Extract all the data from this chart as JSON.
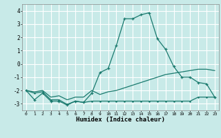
{
  "xlabel": "Humidex (Indice chaleur)",
  "background_color": "#c8eae8",
  "grid_color": "#ffffff",
  "line_color": "#1a7a6e",
  "xlim": [
    -0.5,
    23.5
  ],
  "ylim": [
    -3.5,
    4.5
  ],
  "yticks": [
    -3,
    -2,
    -1,
    0,
    1,
    2,
    3,
    4
  ],
  "xticks": [
    0,
    1,
    2,
    3,
    4,
    5,
    6,
    7,
    8,
    9,
    10,
    11,
    12,
    13,
    14,
    15,
    16,
    17,
    18,
    19,
    20,
    21,
    22,
    23
  ],
  "line1_x": [
    0,
    1,
    2,
    3,
    4,
    5,
    6,
    7,
    8,
    9,
    10,
    11,
    12,
    13,
    14,
    15,
    16,
    17,
    18,
    19,
    20,
    21,
    22,
    23
  ],
  "line1_y": [
    -2.0,
    -2.7,
    -2.2,
    -2.8,
    -2.8,
    -3.1,
    -2.8,
    -2.9,
    -2.2,
    -0.65,
    -0.35,
    1.4,
    3.4,
    3.4,
    3.7,
    3.85,
    1.9,
    1.1,
    -0.2,
    -1.0,
    -1.0,
    -1.4,
    -1.5,
    -2.5
  ],
  "line2_x": [
    0,
    1,
    2,
    3,
    4,
    5,
    6,
    7,
    8,
    9,
    10,
    11,
    12,
    13,
    14,
    15,
    16,
    17,
    18,
    19,
    20,
    21,
    22,
    23
  ],
  "line2_y": [
    -2.0,
    -2.2,
    -2.1,
    -2.7,
    -2.7,
    -3.05,
    -2.8,
    -2.9,
    -2.8,
    -2.8,
    -2.8,
    -2.8,
    -2.8,
    -2.8,
    -2.8,
    -2.8,
    -2.8,
    -2.8,
    -2.8,
    -2.8,
    -2.8,
    -2.5,
    -2.5,
    -2.5
  ],
  "line3_x": [
    0,
    1,
    2,
    3,
    4,
    5,
    6,
    7,
    8,
    9,
    10,
    11,
    12,
    13,
    14,
    15,
    16,
    17,
    18,
    19,
    20,
    21,
    22,
    23
  ],
  "line3_y": [
    -2.0,
    -2.1,
    -2.0,
    -2.5,
    -2.4,
    -2.7,
    -2.5,
    -2.5,
    -2.0,
    -2.3,
    -2.1,
    -2.0,
    -1.8,
    -1.6,
    -1.4,
    -1.2,
    -1.0,
    -0.8,
    -0.7,
    -0.6,
    -0.5,
    -0.4,
    -0.4,
    -0.5
  ]
}
